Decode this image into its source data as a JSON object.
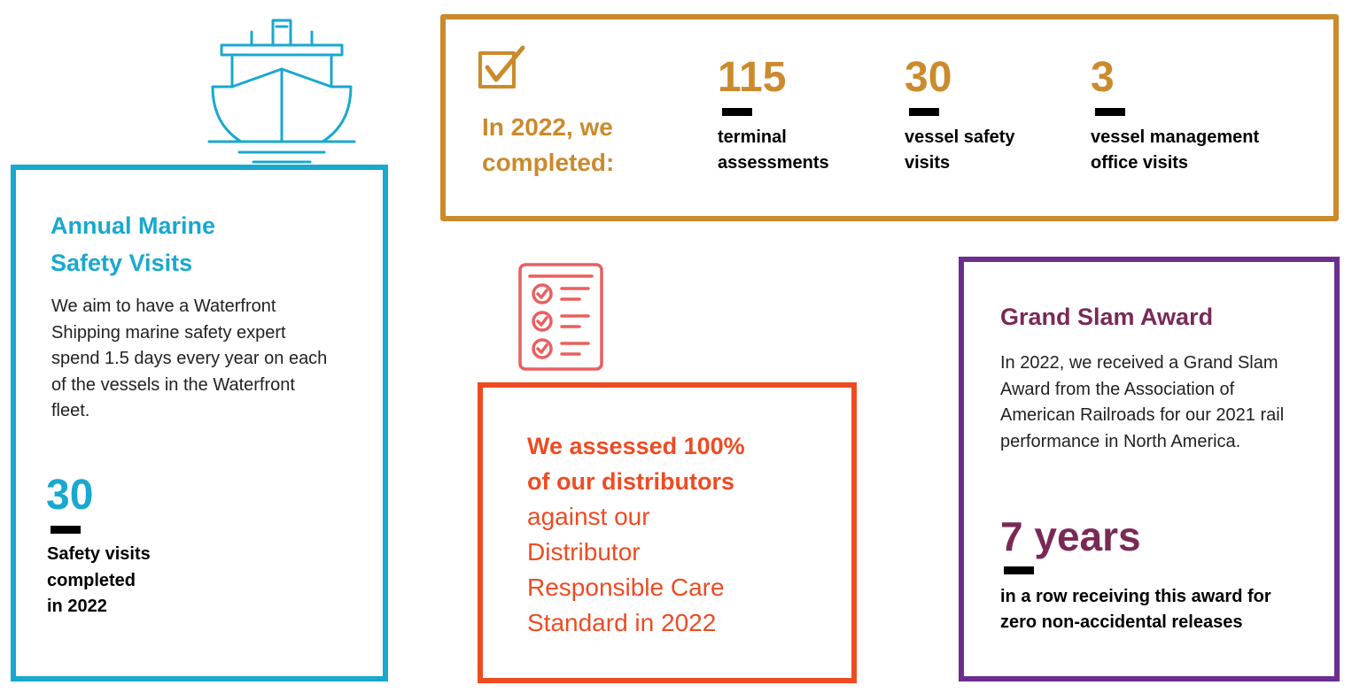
{
  "colors": {
    "blue": "#19a8cf",
    "gold": "#cb8a2c",
    "red": "#ee4b23",
    "purple": "#6b2e8e",
    "plum": "#7a2957"
  },
  "marine": {
    "icon": "ship-icon",
    "title_line1": "Annual Marine",
    "title_line2": "Safety Visits",
    "description": "We aim to have a Waterfront Shipping marine safety expert spend 1.5 days every year on each of the vessels in the Waterfront fleet.",
    "stat_value": "30",
    "stat_label_line1": "Safety visits",
    "stat_label_line2": "completed",
    "stat_label_line3": "in 2022"
  },
  "completed": {
    "icon": "checkbox-icon",
    "intro_line1": "In 2022, we",
    "intro_line2": "completed:",
    "stats": [
      {
        "value": "115",
        "label_line1": "terminal",
        "label_line2": "assessments"
      },
      {
        "value": "30",
        "label_line1": "vessel safety",
        "label_line2": "visits"
      },
      {
        "value": "3",
        "label_line1": "vessel management",
        "label_line2": "office visits"
      }
    ]
  },
  "distributors": {
    "icon": "checklist-icon",
    "bold_line1": "We assessed 100%",
    "bold_line2": "of our distributors",
    "line3": "against our",
    "line4": "Distributor",
    "line5": "Responsible Care",
    "line6": "Standard in 2022"
  },
  "award": {
    "title": "Grand Slam Award",
    "description": "In 2022, we received a Grand Slam Award from the Association of American Railroads for our 2021 rail performance in North America.",
    "stat_value": "7 years",
    "stat_label_line1": "in a row receiving this award for",
    "stat_label_line2": "zero non-accidental releases"
  }
}
